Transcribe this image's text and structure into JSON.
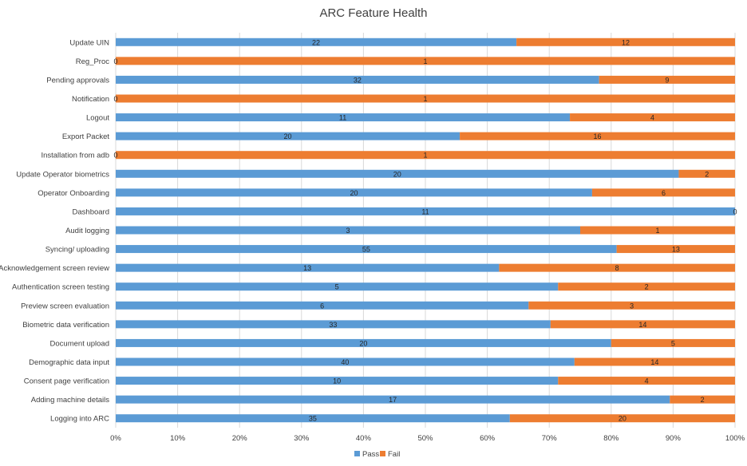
{
  "chart_data": {
    "type": "bar",
    "orientation": "horizontal",
    "stacking": "percent",
    "title": "ARC Feature Health",
    "xlabel": "",
    "ylabel": "",
    "xlim": [
      0,
      100
    ],
    "x_ticks": [
      "0%",
      "10%",
      "20%",
      "30%",
      "40%",
      "50%",
      "60%",
      "70%",
      "80%",
      "90%",
      "100%"
    ],
    "grid": true,
    "legend_position": "bottom",
    "categories": [
      "Update UIN",
      "Reg_Proc",
      "Pending approvals",
      "Notification",
      "Logout",
      "Export Packet",
      "Installation from adb",
      "Update Operator biometrics",
      "Operator Onboarding",
      "Dashboard",
      "Audit logging",
      "Syncing/ uploading",
      "Acknowledgement screen review",
      "Authentication screen testing",
      "Preview screen evaluation",
      "Biometric data verification",
      "Document upload",
      "Demographic data input",
      "Consent page verification",
      "Adding machine details",
      "Logging into ARC"
    ],
    "series": [
      {
        "name": "Pass",
        "color": "#5b9bd5",
        "values": [
          22,
          0,
          32,
          0,
          11,
          20,
          0,
          20,
          20,
          11,
          3,
          55,
          13,
          5,
          6,
          33,
          20,
          40,
          10,
          17,
          35
        ]
      },
      {
        "name": "Fail",
        "color": "#ed7d31",
        "values": [
          12,
          1,
          9,
          1,
          4,
          16,
          1,
          2,
          6,
          0,
          1,
          13,
          8,
          2,
          3,
          14,
          5,
          14,
          4,
          2,
          20
        ]
      }
    ]
  }
}
